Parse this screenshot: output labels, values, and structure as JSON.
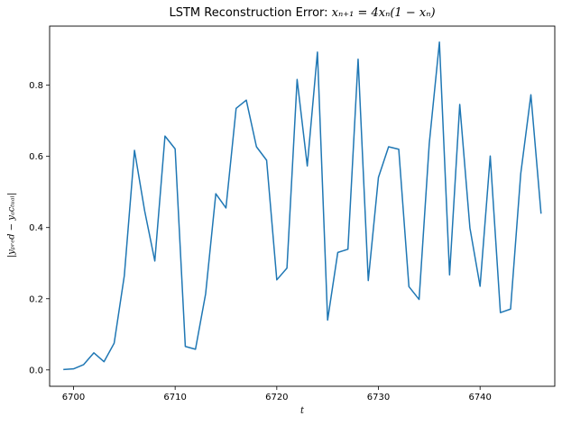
{
  "chart_data": {
    "type": "line",
    "title_prefix": "LSTM Reconstruction Error: ",
    "title_formula": "xₙ₊₁ = 4xₙ(1 − xₙ)",
    "xlabel": "t",
    "ylabel": "|yₚᵣₑd − yₐcₜᵤₐₗ|",
    "xlim": [
      6697.65,
      6747.35
    ],
    "ylim": [
      -0.046,
      0.966
    ],
    "xticks": [
      6700,
      6710,
      6720,
      6730,
      6740
    ],
    "yticks": [
      0.0,
      0.2,
      0.4,
      0.6,
      0.8
    ],
    "ytick_labels": [
      "0.0",
      "0.2",
      "0.4",
      "0.6",
      "0.8"
    ],
    "grid": false,
    "series": [
      {
        "color": "#1f77b4",
        "x": [
          6699,
          6700,
          6701,
          6702,
          6703,
          6704,
          6705,
          6706,
          6707,
          6708,
          6709,
          6710,
          6711,
          6712,
          6713,
          6714,
          6715,
          6716,
          6717,
          6718,
          6719,
          6720,
          6721,
          6722,
          6723,
          6724,
          6725,
          6726,
          6727,
          6728,
          6729,
          6730,
          6731,
          6732,
          6733,
          6734,
          6735,
          6736,
          6737,
          6738,
          6739,
          6740,
          6741,
          6742,
          6743,
          6744,
          6745,
          6746
        ],
        "y": [
          0.001,
          0.003,
          0.015,
          0.048,
          0.023,
          0.075,
          0.265,
          0.617,
          0.447,
          0.306,
          0.657,
          0.621,
          0.066,
          0.058,
          0.214,
          0.495,
          0.455,
          0.735,
          0.758,
          0.627,
          0.589,
          0.253,
          0.286,
          0.816,
          0.573,
          0.893,
          0.14,
          0.33,
          0.339,
          0.873,
          0.251,
          0.541,
          0.627,
          0.62,
          0.234,
          0.198,
          0.636,
          0.921,
          0.267,
          0.746,
          0.399,
          0.235,
          0.601,
          0.161,
          0.171,
          0.551,
          0.773,
          0.439
        ]
      }
    ]
  }
}
